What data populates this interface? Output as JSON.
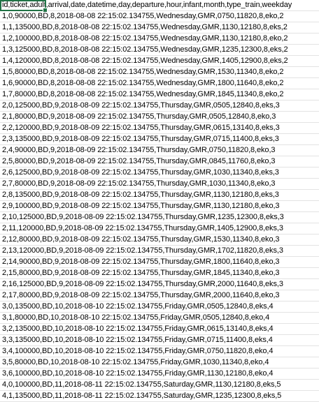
{
  "rows": [
    "id,ticket,adult,arrival,date,datetime,day,departure,hour,infant,month,type_train,weekday",
    "1,0,90000,BD,8,2018-08-08 22:15:02.134755,Wednesday,GMR,0750,11820,8,eko,2",
    "1,1,135000,BD,8,2018-08-08 22:15:02.134755,Wednesday,GMR,1130,12180,8,eks,2",
    "1,2,100000,BD,8,2018-08-08 22:15:02.134755,Wednesday,GMR,1130,12180,8,eko,2",
    "1,3,125000,BD,8,2018-08-08 22:15:02.134755,Wednesday,GMR,1235,12300,8,eks,2",
    "1,4,120000,BD,8,2018-08-08 22:15:02.134755,Wednesday,GMR,1405,12900,8,eks,2",
    "1,5,80000,BD,8,2018-08-08 22:15:02.134755,Wednesday,GMR,1530,11340,8,eko,2",
    "1,6,90000,BD,8,2018-08-08 22:15:02.134755,Wednesday,GMR,1800,11640,8,eko,2",
    "1,7,80000,BD,8,2018-08-08 22:15:02.134755,Wednesday,GMR,1845,11340,8,eko,2",
    "2,0,125000,BD,9,2018-08-09 22:15:02.134755,Thursday,GMR,0505,12840,8,eks,3",
    "2,1,80000,BD,9,2018-08-09 22:15:02.134755,Thursday,GMR,0505,12840,8,eko,3",
    "2,2,120000,BD,9,2018-08-09 22:15:02.134755,Thursday,GMR,0615,13140,8,eks,3",
    "2,3,135000,BD,9,2018-08-09 22:15:02.134755,Thursday,GMR,0715,11400,8,eks,3",
    "2,4,90000,BD,9,2018-08-09 22:15:02.134755,Thursday,GMR,0750,11820,8,eko,3",
    "2,5,80000,BD,9,2018-08-09 22:15:02.134755,Thursday,GMR,0845,11760,8,eko,3",
    "2,6,125000,BD,9,2018-08-09 22:15:02.134755,Thursday,GMR,1030,11340,8,eks,3",
    "2,7,80000,BD,9,2018-08-09 22:15:02.134755,Thursday,GMR,1030,11340,8,eko,3",
    "2,8,135000,BD,9,2018-08-09 22:15:02.134755,Thursday,GMR,1130,12180,8,eks,3",
    "2,9,100000,BD,9,2018-08-09 22:15:02.134755,Thursday,GMR,1130,12180,8,eko,3",
    "2,10,125000,BD,9,2018-08-09 22:15:02.134755,Thursday,GMR,1235,12300,8,eks,3",
    "2,11,120000,BD,9,2018-08-09 22:15:02.134755,Thursday,GMR,1405,12900,8,eks,3",
    "2,12,80000,BD,9,2018-08-09 22:15:02.134755,Thursday,GMR,1530,11340,8,eko,3",
    "2,13,120000,BD,9,2018-08-09 22:15:02.134755,Thursday,GMR,1702,11820,8,eks,3",
    "2,14,90000,BD,9,2018-08-09 22:15:02.134755,Thursday,GMR,1800,11640,8,eko,3",
    "2,15,80000,BD,9,2018-08-09 22:15:02.134755,Thursday,GMR,1845,11340,8,eko,3",
    "2,16,125000,BD,9,2018-08-09 22:15:02.134755,Thursday,GMR,2000,11640,8,eks,3",
    "2,17,80000,BD,9,2018-08-09 22:15:02.134755,Thursday,GMR,2000,11640,8,eko,3",
    "3,0,135000,BD,10,2018-08-10 22:15:02.134755,Friday,GMR,0505,12840,8,eks,4",
    "3,1,80000,BD,10,2018-08-10 22:15:02.134755,Friday,GMR,0505,12840,8,eko,4",
    "3,2,135000,BD,10,2018-08-10 22:15:02.134755,Friday,GMR,0615,13140,8,eks,4",
    "3,3,135000,BD,10,2018-08-10 22:15:02.134755,Friday,GMR,0715,11400,8,eks,4",
    "3,4,100000,BD,10,2018-08-10 22:15:02.134755,Friday,GMR,0750,11820,8,eko,4",
    "3,5,80000,BD,10,2018-08-10 22:15:02.134755,Friday,GMR,1030,11340,8,eko,4",
    "3,6,100000,BD,10,2018-08-10 22:15:02.134755,Friday,GMR,1130,12180,8,eko,4",
    "4,0,100000,BD,11,2018-08-11 22:15:02.134755,Saturday,GMR,1130,12180,8,eks,5",
    "4,1,135000,BD,11,2018-08-11 22:15:02.134755,Saturday,GMR,1235,12300,8,eks,5"
  ]
}
